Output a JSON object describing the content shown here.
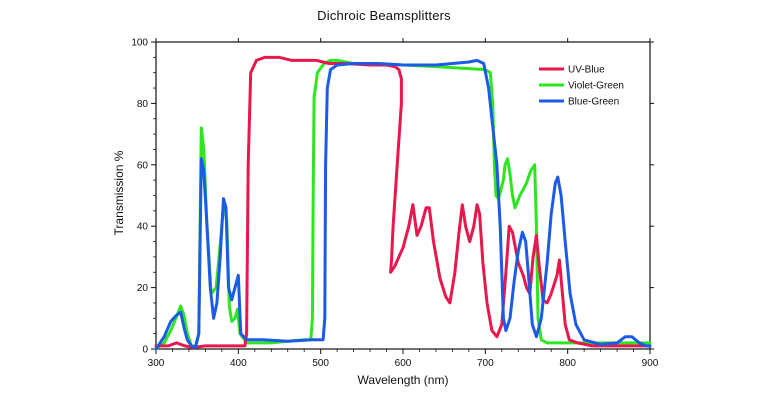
{
  "chart_data": {
    "type": "line",
    "title": "Dichroic Beamsplitters",
    "xlabel": "Wavelength (nm)",
    "ylabel": "Transmission %",
    "xlim": [
      300,
      900
    ],
    "ylim": [
      0,
      100
    ],
    "xticks": [
      300,
      400,
      500,
      600,
      700,
      800,
      900
    ],
    "yticks": [
      0,
      20,
      40,
      60,
      80,
      100
    ],
    "grid": false,
    "legend_position": "top-right",
    "series": [
      {
        "name": "UV-Blue",
        "color": "#e8174d",
        "points": [
          [
            300,
            1
          ],
          [
            315,
            1
          ],
          [
            325,
            2
          ],
          [
            335,
            1
          ],
          [
            345,
            0.5
          ],
          [
            360,
            1
          ],
          [
            380,
            1
          ],
          [
            395,
            1
          ],
          [
            408,
            1
          ],
          [
            410,
            5
          ],
          [
            412,
            60
          ],
          [
            415,
            90
          ],
          [
            422,
            94
          ],
          [
            432,
            95
          ],
          [
            450,
            95
          ],
          [
            465,
            94
          ],
          [
            480,
            94
          ],
          [
            495,
            94
          ],
          [
            510,
            93
          ],
          [
            530,
            93
          ],
          [
            560,
            92.5
          ],
          [
            580,
            92.5
          ],
          [
            590,
            92
          ],
          [
            595,
            91
          ],
          [
            598,
            88
          ],
          [
            598,
            80
          ],
          [
            593,
            60
          ],
          [
            588,
            40
          ],
          [
            586,
            29
          ],
          [
            585,
            25
          ],
          [
            590,
            27
          ],
          [
            600,
            33
          ],
          [
            607,
            40
          ],
          [
            612,
            47
          ],
          [
            617,
            37
          ],
          [
            622,
            40
          ],
          [
            628,
            46
          ],
          [
            632,
            46
          ],
          [
            637,
            35
          ],
          [
            645,
            23
          ],
          [
            652,
            17
          ],
          [
            657,
            15
          ],
          [
            663,
            25
          ],
          [
            668,
            38
          ],
          [
            672,
            47
          ],
          [
            676,
            40
          ],
          [
            681,
            35
          ],
          [
            686,
            40
          ],
          [
            690,
            47
          ],
          [
            693,
            44
          ],
          [
            697,
            28
          ],
          [
            702,
            15
          ],
          [
            708,
            6
          ],
          [
            714,
            4
          ],
          [
            720,
            8
          ],
          [
            725,
            25
          ],
          [
            729,
            40
          ],
          [
            733,
            38
          ],
          [
            740,
            28
          ],
          [
            746,
            24
          ],
          [
            750,
            20
          ],
          [
            754,
            18
          ],
          [
            758,
            30
          ],
          [
            762,
            37
          ],
          [
            765,
            28
          ],
          [
            770,
            16
          ],
          [
            775,
            15
          ],
          [
            780,
            18
          ],
          [
            787,
            24
          ],
          [
            790,
            29
          ],
          [
            793,
            20
          ],
          [
            797,
            8
          ],
          [
            802,
            3
          ],
          [
            812,
            2
          ],
          [
            830,
            1
          ],
          [
            860,
            1
          ],
          [
            900,
            1
          ]
        ]
      },
      {
        "name": "Violet-Green",
        "color": "#2ee620",
        "points": [
          [
            300,
            0
          ],
          [
            310,
            2
          ],
          [
            318,
            6
          ],
          [
            324,
            10
          ],
          [
            330,
            14
          ],
          [
            334,
            11
          ],
          [
            338,
            5
          ],
          [
            343,
            1
          ],
          [
            348,
            1
          ],
          [
            352,
            5
          ],
          [
            355,
            72
          ],
          [
            358,
            65
          ],
          [
            362,
            40
          ],
          [
            367,
            18
          ],
          [
            373,
            20
          ],
          [
            378,
            34
          ],
          [
            382,
            47
          ],
          [
            386,
            42
          ],
          [
            389,
            14
          ],
          [
            392,
            9
          ],
          [
            396,
            10
          ],
          [
            399,
            13
          ],
          [
            402,
            5
          ],
          [
            410,
            2
          ],
          [
            420,
            2
          ],
          [
            440,
            2
          ],
          [
            460,
            2.5
          ],
          [
            480,
            3
          ],
          [
            488,
            3
          ],
          [
            490,
            10
          ],
          [
            491,
            55
          ],
          [
            492,
            82
          ],
          [
            496,
            90
          ],
          [
            504,
            93
          ],
          [
            512,
            94
          ],
          [
            520,
            94
          ],
          [
            540,
            93
          ],
          [
            570,
            93
          ],
          [
            600,
            92.5
          ],
          [
            640,
            92
          ],
          [
            670,
            91.5
          ],
          [
            700,
            91
          ],
          [
            706,
            90
          ],
          [
            709,
            80
          ],
          [
            711,
            60
          ],
          [
            713,
            50
          ],
          [
            716,
            49
          ],
          [
            719,
            52
          ],
          [
            722,
            55
          ],
          [
            724,
            60
          ],
          [
            727,
            62
          ],
          [
            730,
            57
          ],
          [
            733,
            50
          ],
          [
            736,
            46
          ],
          [
            742,
            50
          ],
          [
            750,
            54
          ],
          [
            755,
            58
          ],
          [
            760,
            60
          ],
          [
            762,
            40
          ],
          [
            764,
            10
          ],
          [
            768,
            3
          ],
          [
            775,
            2
          ],
          [
            790,
            2
          ],
          [
            810,
            2
          ],
          [
            840,
            2
          ],
          [
            870,
            2
          ],
          [
            900,
            2
          ]
        ]
      },
      {
        "name": "Blue-Green",
        "color": "#1b5be6",
        "points": [
          [
            300,
            0
          ],
          [
            310,
            4
          ],
          [
            318,
            9
          ],
          [
            325,
            11
          ],
          [
            330,
            12
          ],
          [
            334,
            7
          ],
          [
            338,
            3
          ],
          [
            343,
            1
          ],
          [
            348,
            0.5
          ],
          [
            352,
            5
          ],
          [
            355,
            62
          ],
          [
            358,
            58
          ],
          [
            362,
            40
          ],
          [
            366,
            20
          ],
          [
            370,
            10
          ],
          [
            374,
            15
          ],
          [
            378,
            30
          ],
          [
            382,
            49
          ],
          [
            385,
            46
          ],
          [
            388,
            20
          ],
          [
            392,
            16
          ],
          [
            396,
            20
          ],
          [
            400,
            24
          ],
          [
            403,
            5
          ],
          [
            410,
            3
          ],
          [
            430,
            3
          ],
          [
            460,
            2.5
          ],
          [
            490,
            3
          ],
          [
            498,
            3
          ],
          [
            503,
            3
          ],
          [
            505,
            10
          ],
          [
            506,
            60
          ],
          [
            508,
            85
          ],
          [
            512,
            91
          ],
          [
            520,
            92.5
          ],
          [
            540,
            93
          ],
          [
            570,
            93
          ],
          [
            600,
            92.5
          ],
          [
            640,
            92.5
          ],
          [
            660,
            93
          ],
          [
            680,
            93.5
          ],
          [
            690,
            94
          ],
          [
            698,
            93
          ],
          [
            704,
            85
          ],
          [
            708,
            75
          ],
          [
            714,
            60
          ],
          [
            718,
            40
          ],
          [
            720,
            25
          ],
          [
            722,
            10
          ],
          [
            725,
            6
          ],
          [
            730,
            10
          ],
          [
            735,
            22
          ],
          [
            740,
            32
          ],
          [
            745,
            38
          ],
          [
            749,
            35
          ],
          [
            753,
            22
          ],
          [
            757,
            8
          ],
          [
            762,
            4
          ],
          [
            768,
            10
          ],
          [
            775,
            28
          ],
          [
            780,
            44
          ],
          [
            785,
            54
          ],
          [
            788,
            56
          ],
          [
            792,
            50
          ],
          [
            797,
            35
          ],
          [
            803,
            18
          ],
          [
            810,
            8
          ],
          [
            820,
            3
          ],
          [
            840,
            1.5
          ],
          [
            860,
            2
          ],
          [
            870,
            4
          ],
          [
            878,
            4
          ],
          [
            887,
            2
          ],
          [
            895,
            1
          ],
          [
            900,
            1
          ]
        ]
      }
    ]
  }
}
